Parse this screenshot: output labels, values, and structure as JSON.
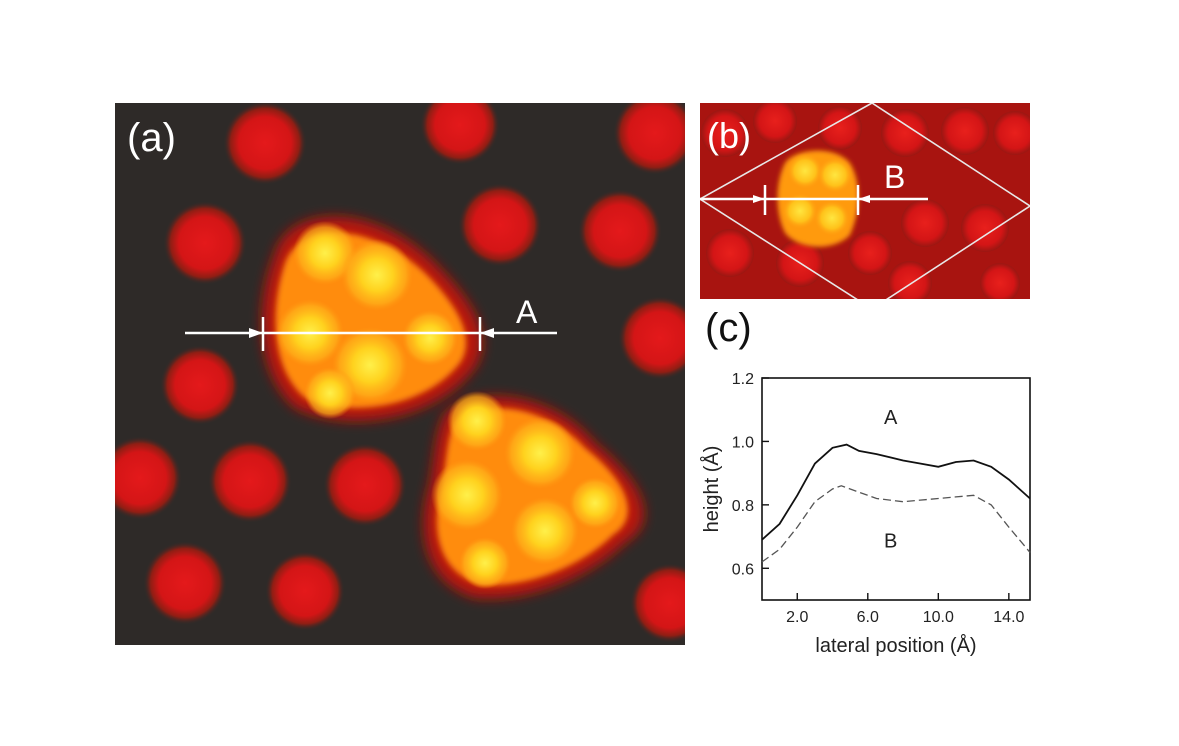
{
  "figure": {
    "panel_a": {
      "label": "(a)",
      "profile_marker": "A"
    },
    "panel_b": {
      "label": "(b)",
      "profile_marker": "B"
    },
    "panel_c": {
      "label": "(c)"
    },
    "colors": {
      "background": "#2e2a28",
      "atom_red": "#d81818",
      "molecule_core": "#ffd21e",
      "molecule_mid": "#ff9a10",
      "line_marks": "#ffffff"
    }
  },
  "chart_data": {
    "type": "line",
    "xlabel": "lateral position (Å)",
    "ylabel": "height (Å)",
    "xlim": [
      0,
      15.2
    ],
    "ylim": [
      0.5,
      1.2
    ],
    "xticks": [
      2,
      6,
      10,
      14
    ],
    "xtick_labels": [
      "2.0",
      "6.0",
      "10.0",
      "14.0"
    ],
    "yticks": [
      0.6,
      0.8,
      1.0,
      1.2
    ],
    "ytick_labels": [
      "0.6",
      "0.8",
      "1.0",
      "1.2"
    ],
    "grid": false,
    "series": [
      {
        "name": "A",
        "style": "solid",
        "points": [
          [
            0,
            0.69
          ],
          [
            1,
            0.74
          ],
          [
            2,
            0.83
          ],
          [
            3,
            0.93
          ],
          [
            4,
            0.98
          ],
          [
            4.8,
            0.99
          ],
          [
            5.5,
            0.97
          ],
          [
            6.5,
            0.96
          ],
          [
            8,
            0.94
          ],
          [
            9,
            0.93
          ],
          [
            10,
            0.92
          ],
          [
            11,
            0.935
          ],
          [
            12,
            0.94
          ],
          [
            13,
            0.92
          ],
          [
            14,
            0.88
          ],
          [
            15.2,
            0.82
          ]
        ]
      },
      {
        "name": "B",
        "style": "dashed",
        "points": [
          [
            0,
            0.62
          ],
          [
            1,
            0.66
          ],
          [
            2,
            0.73
          ],
          [
            3,
            0.81
          ],
          [
            4,
            0.85
          ],
          [
            4.5,
            0.86
          ],
          [
            5.5,
            0.84
          ],
          [
            6.5,
            0.82
          ],
          [
            8,
            0.81
          ],
          [
            10,
            0.82
          ],
          [
            11,
            0.825
          ],
          [
            12,
            0.83
          ],
          [
            13,
            0.8
          ],
          [
            14,
            0.73
          ],
          [
            15.2,
            0.65
          ]
        ]
      }
    ]
  }
}
